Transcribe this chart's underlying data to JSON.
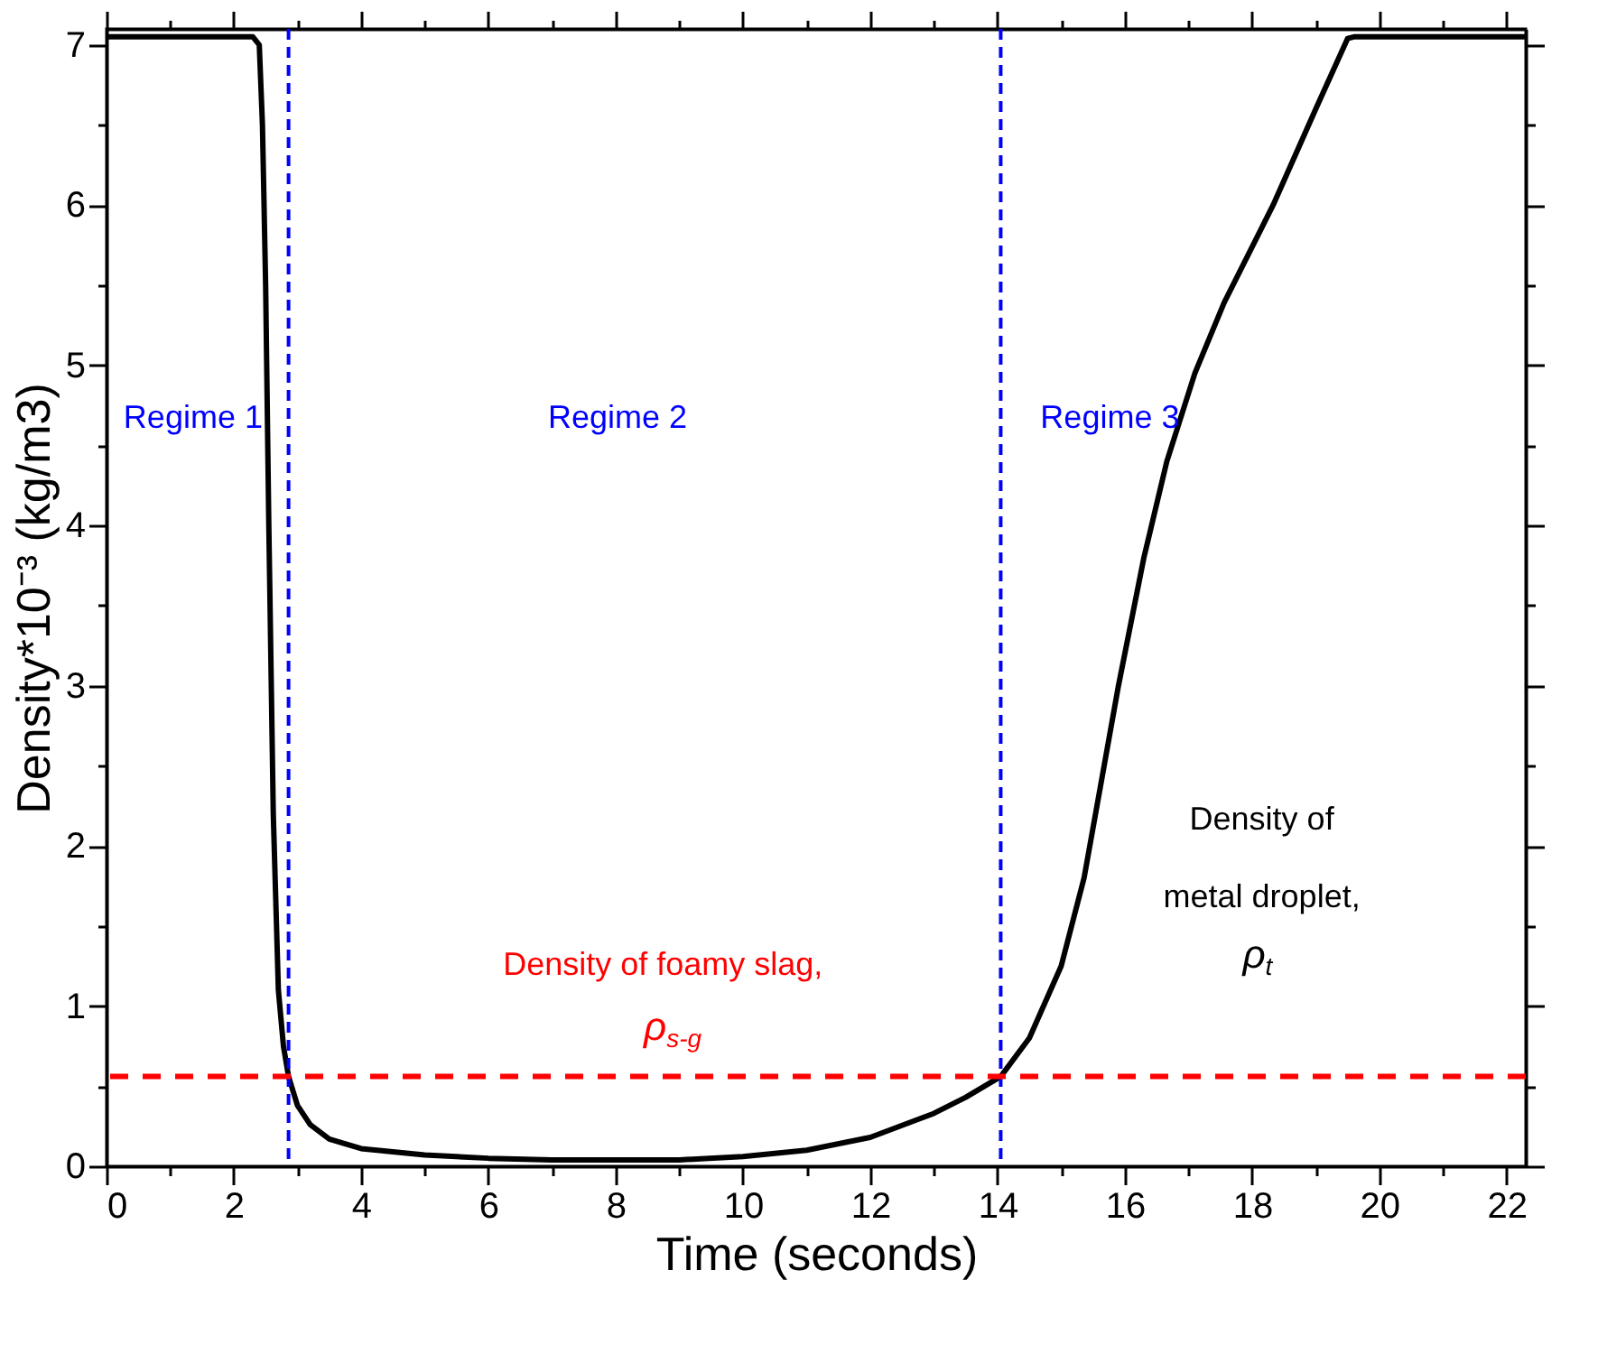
{
  "chart_data": {
    "type": "line",
    "xlabel": "Time (seconds)",
    "ylabel": "Density*10⁻³ (kg/m3)",
    "x": [
      0,
      1,
      2.3,
      2.4,
      2.45,
      2.5,
      2.55,
      2.62,
      2.7,
      2.78,
      2.86,
      3.0,
      3.2,
      3.5,
      4,
      5,
      6,
      7,
      8,
      9,
      10,
      11,
      12,
      13,
      13.5,
      14.05,
      14.5,
      15,
      15.36,
      15.9,
      16.3,
      16.66,
      17.1,
      17.56,
      18.33,
      19,
      19.5,
      19.6,
      21,
      22.3
    ],
    "series": [
      {
        "color": "#000000",
        "values": [
          7.05,
          7.05,
          7.05,
          7.0,
          6.5,
          5.5,
          4.0,
          2.2,
          1.1,
          0.75,
          0.56,
          0.38,
          0.26,
          0.17,
          0.11,
          0.07,
          0.05,
          0.04,
          0.04,
          0.04,
          0.06,
          0.1,
          0.18,
          0.33,
          0.43,
          0.56,
          0.8,
          1.25,
          1.8,
          3.0,
          3.8,
          4.4,
          4.95,
          5.39,
          6.0,
          6.6,
          7.04,
          7.05,
          7.05,
          7.05
        ]
      }
    ],
    "xlim": [
      0,
      22.3
    ],
    "ylim": [
      0,
      7.1
    ],
    "xticks": [
      0,
      {
        "value": 1,
        "label": null
      },
      2,
      {
        "value": 3,
        "label": null
      },
      4,
      {
        "value": 5,
        "label": null
      },
      6,
      {
        "value": 7,
        "label": null
      },
      8,
      {
        "value": 9,
        "label": null
      },
      10,
      {
        "value": 11,
        "label": null
      },
      12,
      {
        "value": 13,
        "label": null
      },
      14,
      {
        "value": 15,
        "label": null
      },
      16,
      {
        "value": 17,
        "label": null
      },
      18,
      {
        "value": 19,
        "label": null
      },
      20,
      {
        "value": 21,
        "label": null
      },
      22
    ],
    "yticks": [
      0,
      {
        "value": 0.5,
        "label": null
      },
      1,
      {
        "value": 1.5,
        "label": null
      },
      2,
      {
        "value": 2.5,
        "label": null
      },
      3,
      {
        "value": 3.5,
        "label": null
      },
      4,
      {
        "value": 4.5,
        "label": null
      },
      5,
      {
        "value": 5.5,
        "label": null
      },
      6,
      {
        "value": 6.5,
        "label": null
      },
      7
    ],
    "ref_lines": [
      {
        "axis": "x",
        "value": 2.86,
        "color": "#0000ff",
        "line_style": "dashed"
      },
      {
        "axis": "x",
        "value": 14.05,
        "color": "#0000ff",
        "line_style": "dashed"
      },
      {
        "axis": "y",
        "value": 0.56,
        "color": "#ff0000",
        "line_style": "dashed"
      }
    ],
    "annotations": [
      "Regime 1",
      "Regime 2",
      "Regime 3",
      "Density of foamy slag,",
      "ρ$_{s-g}$",
      "Density of",
      "metal droplet,",
      "ρ$_{t}$"
    ],
    "grid": false,
    "line_style": "solid",
    "marker": "none"
  }
}
